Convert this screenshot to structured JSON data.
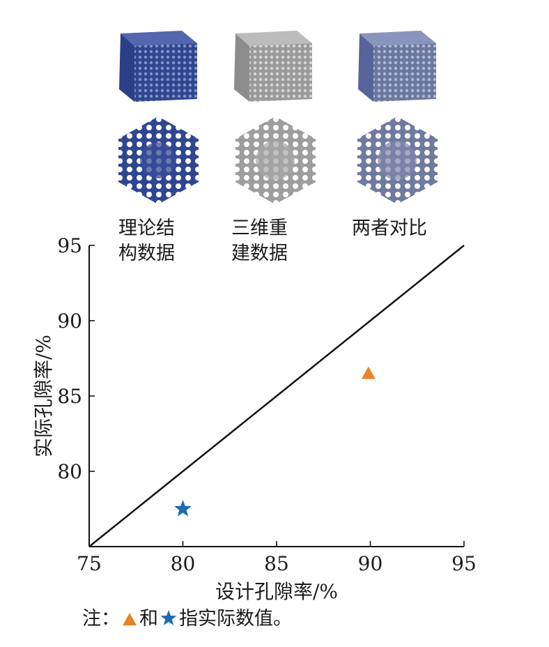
{
  "figure": {
    "thumbnails": [
      {
        "label_line1": "理论结",
        "label_line2": "构数据",
        "color": "#3f56a0"
      },
      {
        "label_line1": "三维重",
        "label_line2": "建数据",
        "color": "#a9a9a9"
      },
      {
        "label_line1": "两者对比",
        "label_line2": "",
        "color": "#6f7fae"
      }
    ]
  },
  "chart_data": {
    "type": "scatter",
    "xlabel": "设计孔隙率/%",
    "ylabel": "实际孔隙率/%",
    "xlim": [
      75,
      95
    ],
    "ylim": [
      75,
      95
    ],
    "x_ticks": [
      "75",
      "80",
      "85",
      "90",
      "95"
    ],
    "y_ticks": [
      "80",
      "85",
      "90",
      "95"
    ],
    "reference_line": {
      "from": [
        75,
        75
      ],
      "to": [
        95,
        95
      ],
      "color": "#111111"
    },
    "series": [
      {
        "marker": "triangle",
        "color": "#e8832a",
        "x": [
          89.9
        ],
        "y": [
          86.5
        ]
      },
      {
        "marker": "star",
        "color": "#1f6bb3",
        "x": [
          80.0
        ],
        "y": [
          77.5
        ]
      }
    ]
  },
  "note": {
    "prefix": "注：",
    "middle": "和",
    "suffix": "指实际数值。",
    "triangle_color": "#e8832a",
    "star_color": "#1f6bb3"
  }
}
